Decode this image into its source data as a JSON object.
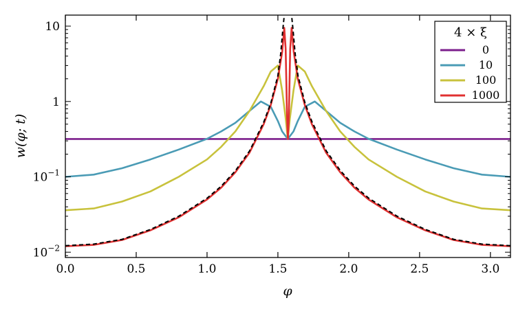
{
  "chart_data": {
    "type": "line",
    "title": "",
    "xlabel": "φ",
    "ylabel": "w(φ; t)",
    "xlim": [
      0,
      3.14159
    ],
    "ylim": [
      0.0085,
      14
    ],
    "yscale": "log",
    "grid": false,
    "xticks": [
      0.0,
      0.5,
      1.0,
      1.5,
      2.0,
      2.5,
      3.0
    ],
    "xtick_labels": [
      "0.0",
      "0.5",
      "1.0",
      "1.5",
      "2.0",
      "2.5",
      "3.0"
    ],
    "yticks": [
      0.01,
      0.1,
      1,
      10
    ],
    "ytick_labels": [
      {
        "base": "10",
        "exp": "−2"
      },
      {
        "base": "10",
        "exp": "−1"
      },
      {
        "base": "1",
        "exp": ""
      },
      {
        "base": "10",
        "exp": ""
      }
    ],
    "legend": {
      "title": "4 × ξ",
      "position": "top-right",
      "entries": [
        "0",
        "10",
        "100",
        "1000"
      ]
    },
    "series": [
      {
        "name": "0",
        "color": "#7b1e8c",
        "x": [
          0.0,
          3.1416
        ],
        "y": [
          0.318,
          0.318
        ]
      },
      {
        "name": "10",
        "color": "#4a9bb5",
        "x": [
          0.0,
          0.2,
          0.4,
          0.6,
          0.8,
          1.0,
          1.1,
          1.2,
          1.3,
          1.38,
          1.45,
          1.5,
          1.53,
          1.57,
          1.61,
          1.64,
          1.69,
          1.76,
          1.84,
          1.94,
          2.04,
          2.14,
          2.34,
          2.54,
          2.74,
          2.94,
          3.1416
        ],
        "y": [
          0.1,
          0.107,
          0.13,
          0.17,
          0.23,
          0.32,
          0.4,
          0.52,
          0.75,
          1.0,
          0.85,
          0.55,
          0.4,
          0.318,
          0.4,
          0.55,
          0.85,
          1.0,
          0.75,
          0.52,
          0.4,
          0.32,
          0.23,
          0.17,
          0.13,
          0.107,
          0.1
        ]
      },
      {
        "name": "100",
        "color": "#c8c23c",
        "x": [
          0.0,
          0.2,
          0.4,
          0.6,
          0.8,
          1.0,
          1.1,
          1.2,
          1.3,
          1.4,
          1.45,
          1.5,
          1.53,
          1.555,
          1.57,
          1.585,
          1.61,
          1.64,
          1.69,
          1.74,
          1.84,
          1.94,
          2.04,
          2.14,
          2.34,
          2.54,
          2.74,
          2.94,
          3.1416
        ],
        "y": [
          0.036,
          0.038,
          0.047,
          0.064,
          0.1,
          0.17,
          0.25,
          0.4,
          0.75,
          1.6,
          2.5,
          3.0,
          1.4,
          0.6,
          0.318,
          0.6,
          1.4,
          3.0,
          2.5,
          1.6,
          0.75,
          0.4,
          0.25,
          0.17,
          0.1,
          0.064,
          0.047,
          0.038,
          0.036
        ]
      },
      {
        "name": "1000",
        "color": "#e03030",
        "x": [
          0.0,
          0.2,
          0.4,
          0.6,
          0.8,
          1.0,
          1.1,
          1.2,
          1.3,
          1.4,
          1.45,
          1.5,
          1.53,
          1.545,
          1.555,
          1.565,
          1.5708,
          1.577,
          1.587,
          1.597,
          1.612,
          1.64,
          1.69,
          1.74,
          1.84,
          1.94,
          2.04,
          2.14,
          2.34,
          2.54,
          2.74,
          2.94,
          3.1416
        ],
        "y": [
          0.012,
          0.0125,
          0.0145,
          0.0195,
          0.029,
          0.05,
          0.072,
          0.115,
          0.21,
          0.5,
          0.9,
          2.0,
          4.5,
          9.5,
          5.0,
          0.6,
          0.318,
          0.6,
          5.0,
          9.5,
          4.5,
          2.0,
          0.9,
          0.5,
          0.21,
          0.115,
          0.072,
          0.05,
          0.029,
          0.0195,
          0.0145,
          0.0125,
          0.012
        ]
      }
    ],
    "reference_curves": {
      "color": "#000000",
      "style": "dashed",
      "x": [
        0.0,
        0.2,
        0.4,
        0.6,
        0.8,
        1.0,
        1.1,
        1.2,
        1.3,
        1.4,
        1.45,
        1.5,
        1.52,
        1.535,
        1.545
      ],
      "y": [
        0.0122,
        0.0128,
        0.0148,
        0.02,
        0.03,
        0.052,
        0.075,
        0.12,
        0.22,
        0.53,
        0.95,
        2.2,
        4.3,
        9.0,
        14
      ],
      "mirror_about": 1.5708
    }
  }
}
